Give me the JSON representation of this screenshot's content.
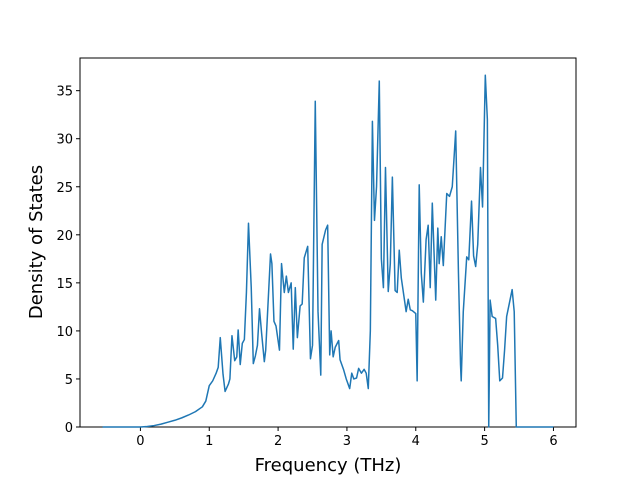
{
  "chart_data": {
    "type": "line",
    "xlabel": "Frequency (THz)",
    "ylabel": "Density of States",
    "x": [
      -0.55,
      0,
      0.1,
      0.2,
      0.3,
      0.4,
      0.5,
      0.6,
      0.7,
      0.8,
      0.9,
      0.95,
      1.0,
      1.05,
      1.1,
      1.13,
      1.16,
      1.2,
      1.23,
      1.28,
      1.3,
      1.33,
      1.37,
      1.4,
      1.42,
      1.45,
      1.48,
      1.51,
      1.54,
      1.57,
      1.61,
      1.64,
      1.67,
      1.7,
      1.73,
      1.76,
      1.8,
      1.82,
      1.89,
      1.91,
      1.94,
      1.97,
      2.02,
      2.05,
      2.09,
      2.12,
      2.15,
      2.19,
      2.22,
      2.25,
      2.28,
      2.32,
      2.35,
      2.38,
      2.43,
      2.47,
      2.5,
      2.54,
      2.58,
      2.62,
      2.64,
      2.69,
      2.72,
      2.75,
      2.77,
      2.8,
      2.83,
      2.88,
      2.9,
      2.95,
      2.99,
      3.04,
      3.07,
      3.1,
      3.14,
      3.17,
      3.21,
      3.25,
      3.28,
      3.31,
      3.34,
      3.37,
      3.4,
      3.43,
      3.47,
      3.5,
      3.53,
      3.56,
      3.6,
      3.63,
      3.66,
      3.7,
      3.73,
      3.76,
      3.79,
      3.83,
      3.86,
      3.89,
      3.92,
      3.95,
      4.0,
      4.02,
      4.05,
      4.08,
      4.11,
      4.15,
      4.18,
      4.21,
      4.24,
      4.29,
      4.32,
      4.34,
      4.37,
      4.4,
      4.45,
      4.49,
      4.53,
      4.58,
      4.62,
      4.65,
      4.66,
      4.69,
      4.74,
      4.77,
      4.81,
      4.84,
      4.87,
      4.9,
      4.94,
      4.97,
      5.01,
      5.04,
      5.06,
      5.08,
      5.11,
      5.16,
      5.19,
      5.22,
      5.26,
      5.29,
      5.32,
      5.36,
      5.4,
      5.43,
      5.46,
      6.0
    ],
    "series": [
      {
        "color": "#1f77b4",
        "values": [
          0,
          0,
          0.05,
          0.15,
          0.3,
          0.5,
          0.7,
          0.95,
          1.25,
          1.6,
          2.1,
          2.7,
          4.3,
          4.8,
          5.6,
          6.2,
          9.3,
          5.5,
          3.7,
          4.5,
          5.0,
          9.5,
          6.9,
          7.3,
          10.1,
          6.5,
          8.7,
          9.1,
          14.0,
          21.2,
          14.5,
          6.6,
          7.4,
          8.5,
          12.3,
          9.8,
          6.8,
          8.0,
          18.0,
          17.0,
          11.0,
          10.5,
          8.0,
          17.0,
          14.0,
          15.7,
          14.0,
          15.0,
          8.1,
          14.5,
          9.3,
          12.6,
          12.8,
          17.6,
          18.8,
          7.1,
          8.5,
          33.9,
          12.0,
          5.4,
          19.0,
          20.5,
          21.0,
          7.5,
          10.0,
          7.3,
          8.3,
          9.0,
          7.0,
          6.0,
          5.0,
          4.0,
          5.6,
          5.0,
          5.1,
          6.1,
          5.6,
          6.0,
          5.6,
          4.0,
          10.0,
          31.8,
          21.5,
          25.0,
          36.0,
          17.5,
          14.5,
          27.0,
          14.1,
          17.0,
          26.0,
          14.2,
          14.0,
          18.4,
          15.5,
          13.5,
          12.0,
          13.3,
          12.2,
          12.1,
          11.8,
          4.8,
          25.2,
          16.0,
          13.0,
          19.5,
          21.0,
          14.5,
          23.3,
          13.2,
          20.7,
          17.0,
          19.8,
          16.8,
          24.3,
          24.0,
          25.0,
          30.8,
          16.0,
          6.5,
          4.8,
          12.0,
          17.7,
          17.4,
          23.5,
          17.8,
          16.7,
          19.0,
          27.0,
          22.9,
          36.6,
          32.0,
          0,
          13.2,
          11.5,
          11.3,
          8.5,
          4.8,
          5.1,
          8.0,
          11.5,
          12.9,
          14.3,
          12.0,
          0,
          0
        ]
      }
    ],
    "xlim": [
      -0.8775,
      6.3275
    ],
    "xticks": [
      0,
      1,
      2,
      3,
      4,
      5,
      6
    ],
    "ylim": [
      0,
      38.4
    ],
    "yticks": [
      0,
      5,
      10,
      15,
      20,
      25,
      30,
      35
    ]
  }
}
